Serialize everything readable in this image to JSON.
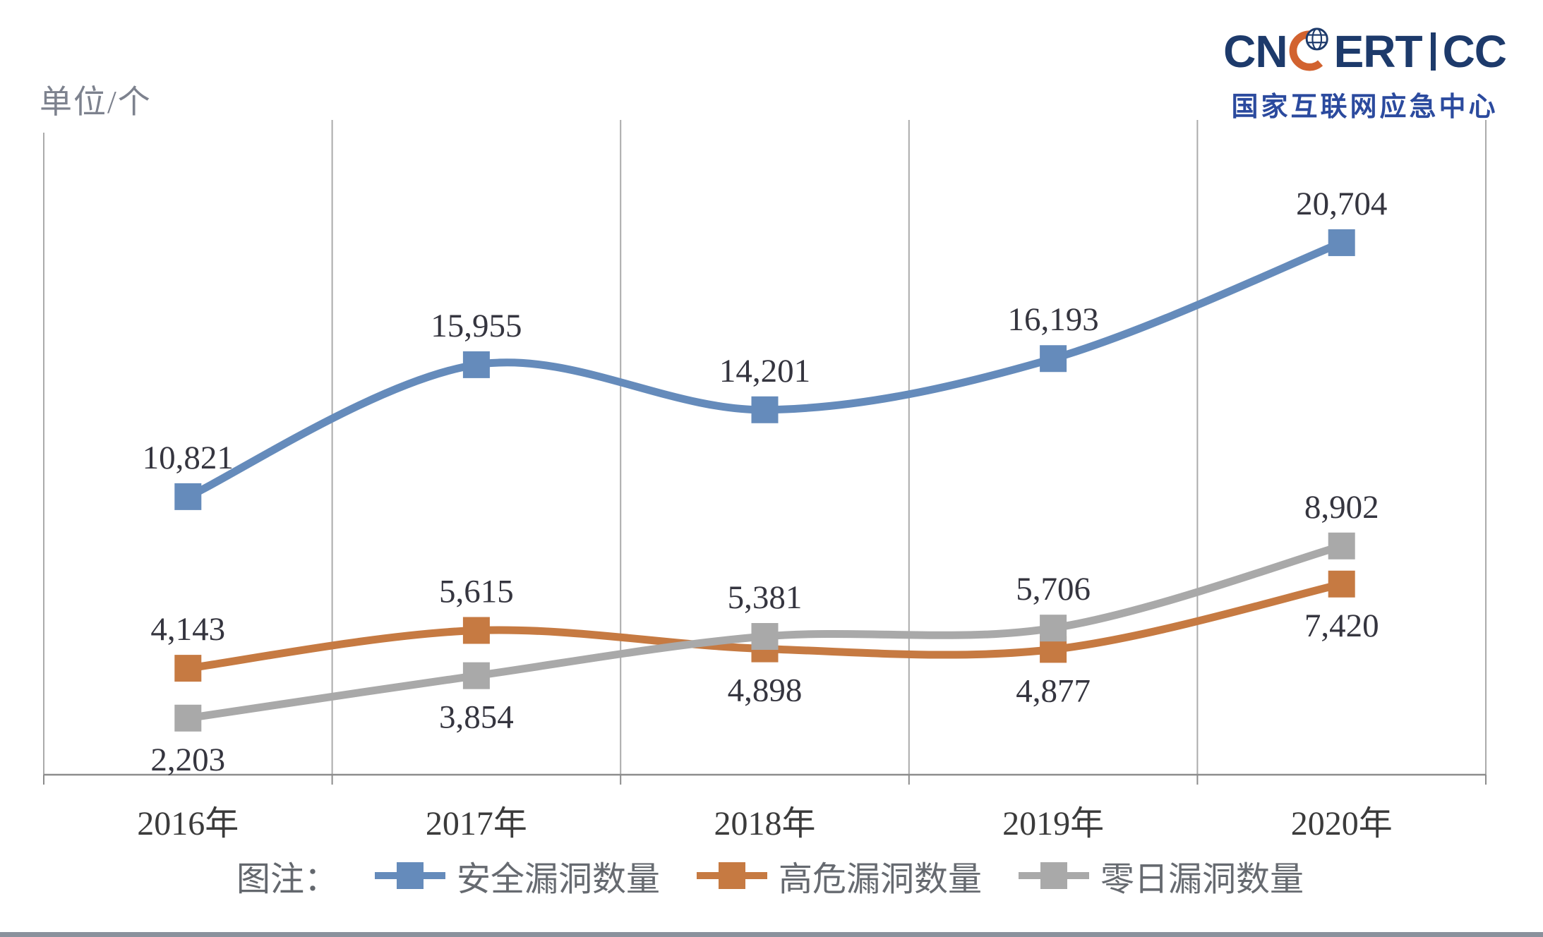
{
  "logo": {
    "prefix": "CN",
    "middle": "ERT",
    "suffix": "CC",
    "subtitle": "国家互联网应急中心",
    "navy": "#1d3a6b",
    "subtitle_blue": "#2b4a9e",
    "crescent_orange": "#d2622f"
  },
  "chart_data": {
    "type": "line",
    "title": "",
    "unit_label": "单位/个",
    "legend_prefix": "图注：",
    "legend_position": "bottom",
    "grid": "vertical-between-categories",
    "smooth": true,
    "ylim": [
      0,
      25480
    ],
    "categories": [
      "2016年",
      "2017年",
      "2018年",
      "2019年",
      "2020年"
    ],
    "series": [
      {
        "name": "安全漏洞数量",
        "color": "#658bbb",
        "values": [
          10821,
          15955,
          14201,
          16193,
          20704
        ],
        "labels": [
          "10,821",
          "15,955",
          "14,201",
          "16,193",
          "20,704"
        ],
        "label_pos": [
          "above",
          "above",
          "above",
          "above",
          "above"
        ]
      },
      {
        "name": "高危漏洞数量",
        "color": "#c67a42",
        "values": [
          4143,
          5615,
          4898,
          4877,
          7420
        ],
        "labels": [
          "4,143",
          "5,615",
          "4,898",
          "4,877",
          "7,420"
        ],
        "label_pos": [
          "above",
          "above",
          "below",
          "below",
          "below"
        ]
      },
      {
        "name": "零日漏洞数量",
        "color": "#a9a9a9",
        "values": [
          2203,
          3854,
          5381,
          5706,
          8902
        ],
        "labels": [
          "2,203",
          "3,854",
          "5,381",
          "5,706",
          "8,902"
        ],
        "label_pos": [
          "below",
          "below",
          "above",
          "above",
          "above"
        ]
      }
    ],
    "axis_color": "#8c8c8c",
    "grid_color": "#ababab",
    "label_color": "#35353f"
  }
}
